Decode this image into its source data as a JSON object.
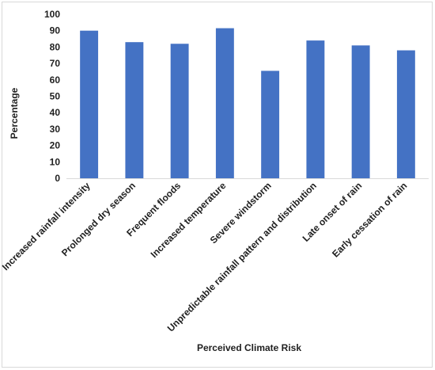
{
  "chart_data": {
    "type": "bar",
    "title": "",
    "xlabel": "Perceived Climate Risk",
    "ylabel": "Percentage",
    "ylim": [
      0,
      100
    ],
    "yticks": [
      0,
      10,
      20,
      30,
      40,
      50,
      60,
      70,
      80,
      90,
      100
    ],
    "categories": [
      "Increased rainfall intensity",
      "Prolonged dry season",
      "Frequent floods",
      "Increased temperature",
      "Severe windstorm",
      "Unpredictable rainfall pattern and distribution",
      "Late onset of rain",
      "Early cessation of rain"
    ],
    "values": [
      90,
      83,
      82,
      91.5,
      65.5,
      84,
      81,
      78
    ],
    "bar_color": "#4472C4",
    "grid": false,
    "legend": "none"
  }
}
